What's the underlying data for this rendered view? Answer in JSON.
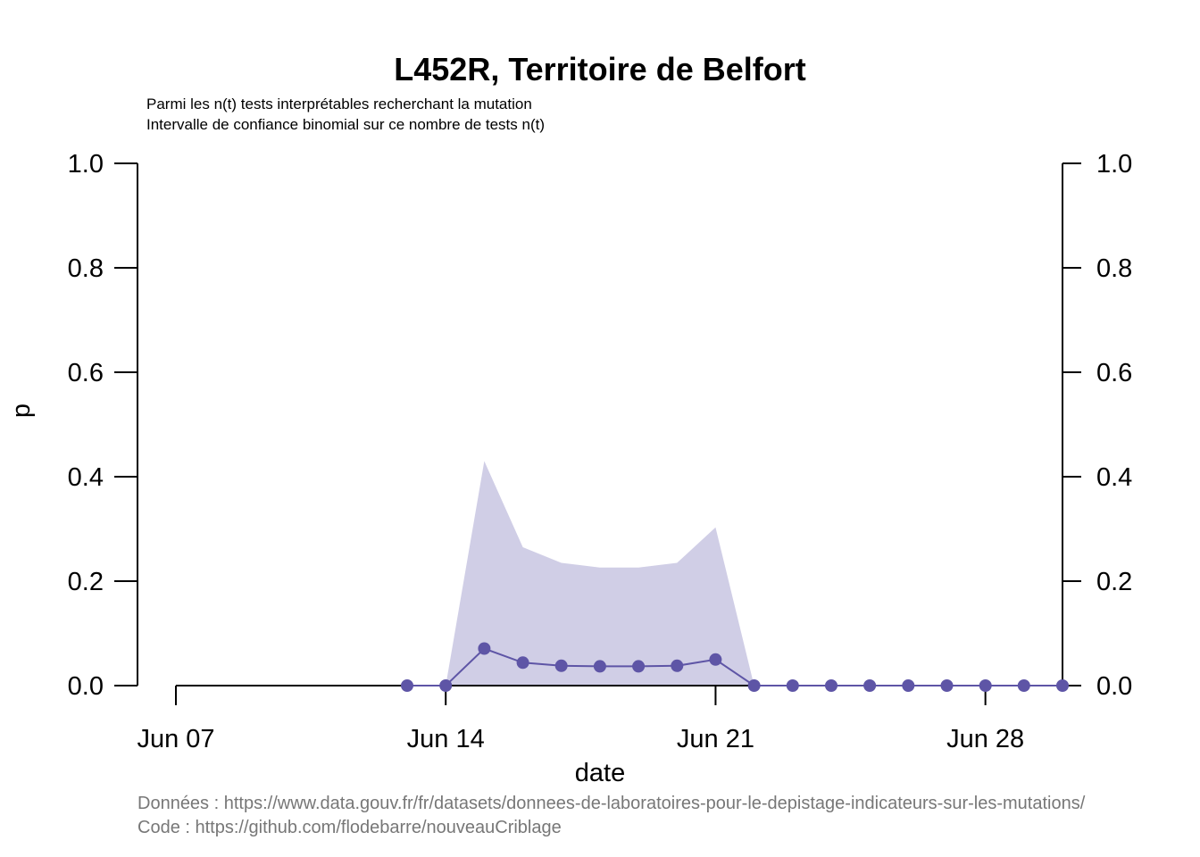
{
  "chart_data": {
    "type": "line",
    "title": "L452R, Territoire de Belfort",
    "subtitle_lines": [
      "Parmi les n(t) tests interprétables recherchant la mutation",
      "Intervalle de confiance binomial sur ce nombre de tests n(t)"
    ],
    "xlabel": "date",
    "ylabel": "p",
    "x_axis": {
      "type": "date",
      "range": [
        "2021-06-07",
        "2021-06-30"
      ],
      "ticks": [
        {
          "date": "2021-06-07",
          "label": "Jun 07"
        },
        {
          "date": "2021-06-14",
          "label": "Jun 14"
        },
        {
          "date": "2021-06-21",
          "label": "Jun 21"
        },
        {
          "date": "2021-06-28",
          "label": "Jun 28"
        }
      ]
    },
    "ylim": [
      0,
      1
    ],
    "y_ticks": [
      "0.0",
      "0.2",
      "0.4",
      "0.6",
      "0.8",
      "1.0"
    ],
    "y_axis_right": true,
    "grid": false,
    "colors": {
      "series": "#5E55A6",
      "band": "#D0CEE6",
      "source_text": "#777777"
    },
    "series": [
      {
        "points": [
          {
            "date": "2021-06-13",
            "value": 0.0
          },
          {
            "date": "2021-06-14",
            "value": 0.0
          },
          {
            "date": "2021-06-15",
            "value": 0.071
          },
          {
            "date": "2021-06-16",
            "value": 0.044
          },
          {
            "date": "2021-06-17",
            "value": 0.038
          },
          {
            "date": "2021-06-18",
            "value": 0.037
          },
          {
            "date": "2021-06-19",
            "value": 0.037
          },
          {
            "date": "2021-06-20",
            "value": 0.038
          },
          {
            "date": "2021-06-21",
            "value": 0.05
          },
          {
            "date": "2021-06-22",
            "value": 0.0
          },
          {
            "date": "2021-06-23",
            "value": 0.0
          },
          {
            "date": "2021-06-24",
            "value": 0.0
          },
          {
            "date": "2021-06-25",
            "value": 0.0
          },
          {
            "date": "2021-06-26",
            "value": 0.0
          },
          {
            "date": "2021-06-27",
            "value": 0.0
          },
          {
            "date": "2021-06-28",
            "value": 0.0
          },
          {
            "date": "2021-06-29",
            "value": 0.0
          },
          {
            "date": "2021-06-30",
            "value": 0.0
          }
        ]
      }
    ],
    "confidence_band": [
      {
        "date": "2021-06-14",
        "lower": 0.0,
        "upper": 0.0
      },
      {
        "date": "2021-06-15",
        "lower": 0.0,
        "upper": 0.43
      },
      {
        "date": "2021-06-16",
        "lower": 0.0,
        "upper": 0.265
      },
      {
        "date": "2021-06-17",
        "lower": 0.0,
        "upper": 0.235
      },
      {
        "date": "2021-06-18",
        "lower": 0.0,
        "upper": 0.226
      },
      {
        "date": "2021-06-19",
        "lower": 0.0,
        "upper": 0.226
      },
      {
        "date": "2021-06-20",
        "lower": 0.0,
        "upper": 0.235
      },
      {
        "date": "2021-06-21",
        "lower": 0.0,
        "upper": 0.303
      },
      {
        "date": "2021-06-22",
        "lower": 0.0,
        "upper": 0.0
      }
    ]
  },
  "source_lines": [
    "Données : https://www.data.gouv.fr/fr/datasets/donnees-de-laboratoires-pour-le-depistage-indicateurs-sur-les-mutations/",
    "Code : https://github.com/flodebarre/nouveauCriblage"
  ]
}
